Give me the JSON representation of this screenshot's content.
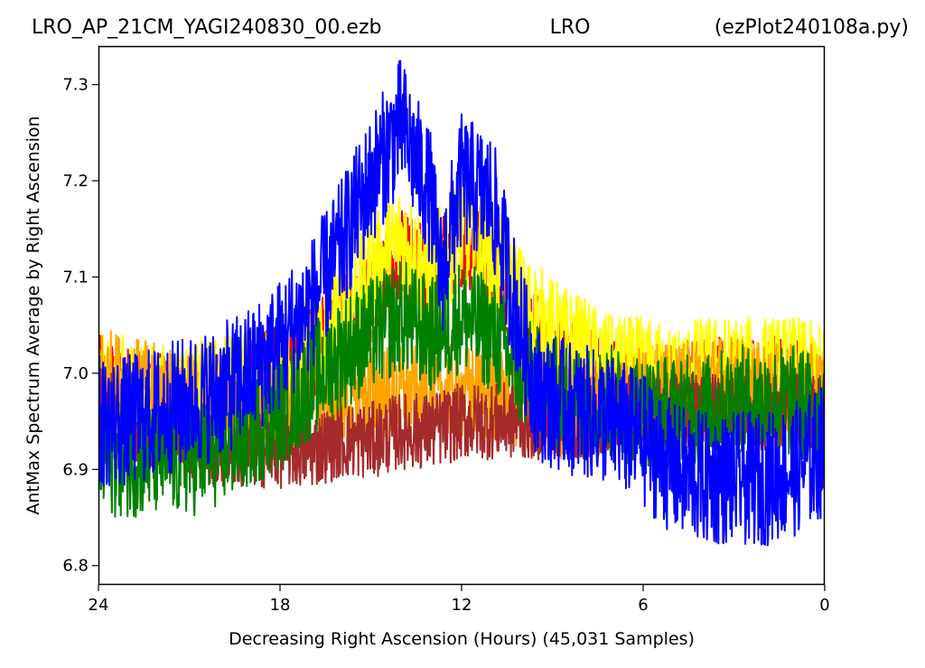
{
  "chart_data": {
    "type": "line",
    "title": {
      "left": "LRO_AP_21CM_YAGI240830_00.ezb",
      "center": "LRO",
      "right": "(ezPlot240108a.py)"
    },
    "xlabel": "Decreasing Right Ascension (Hours) (45,031 Samples)",
    "ylabel": "AntMax Spectrum Average by Right Ascension",
    "xlim": [
      24,
      0
    ],
    "ylim": [
      6.78,
      7.34
    ],
    "x_ticks": [
      24,
      18,
      12,
      6,
      0
    ],
    "x_tick_labels": [
      "24",
      "18",
      "12",
      "6",
      "0"
    ],
    "y_ticks": [
      6.8,
      6.9,
      7.0,
      7.1,
      7.2,
      7.3
    ],
    "y_tick_labels": [
      "6.8",
      "6.9",
      "7.0",
      "7.1",
      "7.2",
      "7.3"
    ],
    "grid": false,
    "legend": "none",
    "series": [
      {
        "color": "#ff0000",
        "x": [
          24,
          23,
          22,
          21,
          20,
          19,
          18,
          17,
          16,
          15,
          14,
          13,
          12,
          11,
          10,
          9,
          8,
          7,
          6,
          5,
          4,
          3,
          2,
          1,
          0
        ],
        "y": [
          6.99,
          6.98,
          6.97,
          6.97,
          6.98,
          6.99,
          7.0,
          7.02,
          7.05,
          7.08,
          7.12,
          7.1,
          7.14,
          7.12,
          7.05,
          7.02,
          7.0,
          6.99,
          6.98,
          6.98,
          6.99,
          6.99,
          6.99,
          6.99,
          6.98
        ],
        "spread": 0.05
      },
      {
        "color": "#ffff00",
        "x": [
          24,
          23,
          22,
          21,
          20,
          19,
          18,
          17,
          16,
          15,
          14,
          13,
          12,
          11,
          10,
          9,
          8,
          7,
          6,
          5,
          4,
          3,
          2,
          1,
          0
        ],
        "y": [
          6.98,
          6.98,
          6.97,
          6.97,
          6.98,
          6.99,
          7.0,
          7.02,
          7.06,
          7.1,
          7.14,
          7.1,
          7.15,
          7.12,
          7.07,
          7.04,
          7.02,
          7.0,
          7.0,
          6.99,
          7.0,
          7.0,
          7.0,
          7.0,
          6.99
        ],
        "spread": 0.06
      },
      {
        "color": "#ffa500",
        "x": [
          24,
          23,
          22,
          21,
          20,
          19,
          18,
          17,
          16,
          15,
          14,
          13,
          12,
          11,
          10,
          9,
          8,
          7,
          6,
          5,
          4,
          3,
          2,
          1,
          0
        ],
        "y": [
          7.0,
          6.99,
          6.98,
          6.97,
          6.96,
          6.96,
          6.96,
          6.97,
          6.97,
          6.98,
          6.98,
          6.98,
          6.98,
          6.98,
          6.97,
          6.96,
          6.96,
          6.97,
          6.98,
          6.98,
          6.99,
          6.99,
          6.98,
          6.98,
          6.98
        ],
        "spread": 0.05
      },
      {
        "color": "#a52a2a",
        "x": [
          24,
          23,
          22,
          21,
          20,
          19,
          18,
          17,
          16,
          15,
          14,
          13,
          12,
          11,
          10,
          9,
          8,
          7,
          6,
          5,
          4,
          3,
          2,
          1,
          0
        ],
        "y": [
          6.97,
          6.95,
          6.94,
          6.93,
          6.92,
          6.92,
          6.92,
          6.92,
          6.93,
          6.93,
          6.94,
          6.94,
          6.95,
          6.95,
          6.95,
          6.95,
          6.95,
          6.96,
          6.96,
          6.96,
          6.96,
          6.96,
          6.96,
          6.96,
          6.96
        ],
        "spread": 0.04
      },
      {
        "color": "#008000",
        "x": [
          24,
          23,
          22,
          21,
          20,
          19,
          18,
          17,
          16,
          15,
          14,
          13,
          12,
          11,
          10,
          9,
          8,
          7,
          6,
          5,
          4,
          3,
          2,
          1,
          0
        ],
        "y": [
          6.91,
          6.91,
          6.91,
          6.91,
          6.92,
          6.94,
          6.96,
          6.99,
          7.02,
          7.04,
          7.06,
          7.04,
          7.06,
          7.04,
          7.0,
          6.98,
          6.97,
          6.97,
          6.96,
          6.96,
          6.96,
          6.97,
          6.97,
          6.97,
          6.96
        ],
        "spread": 0.06
      },
      {
        "color": "#0000ff",
        "x": [
          24,
          23.3,
          23,
          22,
          21,
          20,
          19,
          18,
          17,
          16,
          15,
          14,
          13,
          12.7,
          12,
          11,
          10,
          9.5,
          9,
          8,
          7,
          6,
          5,
          4,
          3,
          2,
          1,
          0
        ],
        "y": [
          6.95,
          6.95,
          6.95,
          6.96,
          6.97,
          6.98,
          7.0,
          7.03,
          7.07,
          7.13,
          7.2,
          7.26,
          7.18,
          7.1,
          7.2,
          7.18,
          7.04,
          6.98,
          6.97,
          6.96,
          6.95,
          6.93,
          6.9,
          6.89,
          6.89,
          6.89,
          6.9,
          6.92
        ],
        "spread": 0.07
      }
    ]
  }
}
